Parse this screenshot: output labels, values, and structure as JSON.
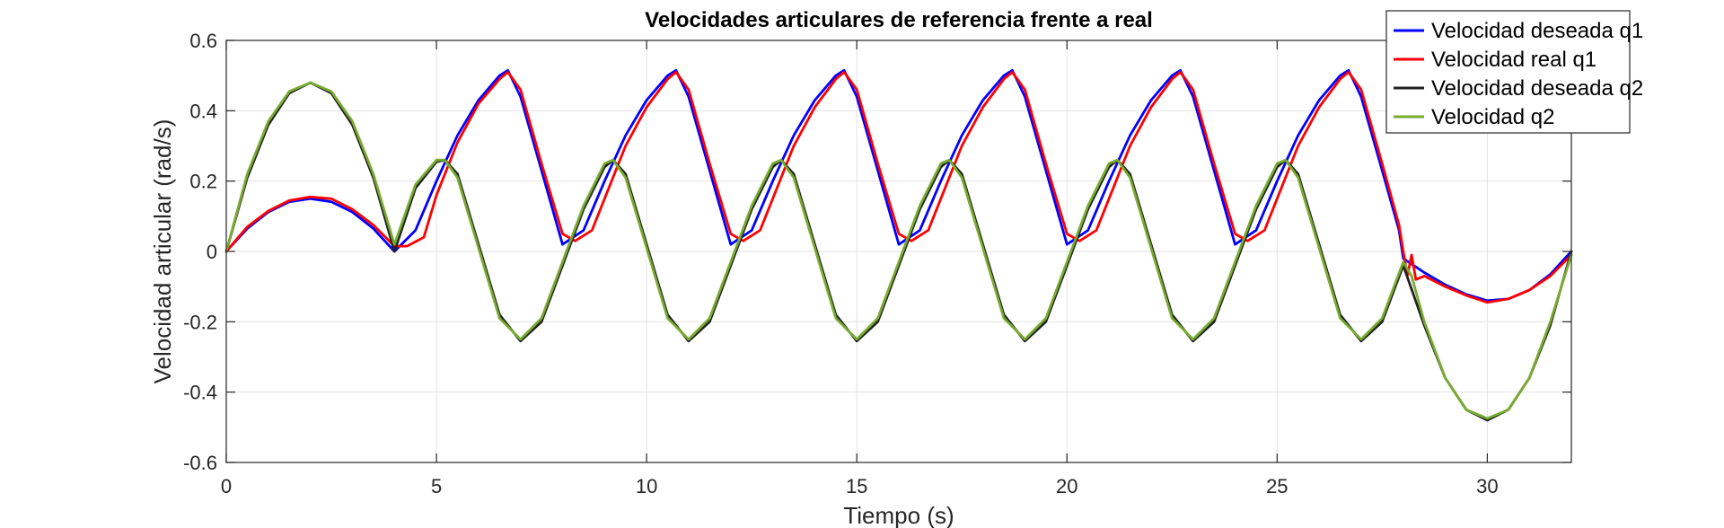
{
  "chart_data": {
    "type": "line",
    "title": "Velocidades articulares de referencia frente a real",
    "xlabel": "Tiempo (s)",
    "ylabel": "Velocidad articular (rad/s)",
    "xlim": [
      0,
      32
    ],
    "ylim": [
      -0.6,
      0.6
    ],
    "xticks": [
      0,
      5,
      10,
      15,
      20,
      25,
      30
    ],
    "yticks": [
      -0.6,
      -0.4,
      -0.2,
      0,
      0.2,
      0.4,
      0.6
    ],
    "xtick_labels": [
      "0",
      "5",
      "10",
      "15",
      "20",
      "25",
      "30"
    ],
    "ytick_labels": [
      "-0.6",
      "-0.4",
      "-0.2",
      "0",
      "0.2",
      "0.4",
      "0.6"
    ],
    "grid": true,
    "legend_position": "top-right",
    "series": [
      {
        "name": "Velocidad deseada q1",
        "color": "#0000FF",
        "x": [
          0,
          0.5,
          1,
          1.5,
          2,
          2.5,
          3,
          3.5,
          4,
          4.5,
          5,
          5.5,
          6,
          6.5,
          6.7,
          7,
          7.5,
          8,
          8.5,
          9,
          9.5,
          10,
          10.5,
          10.7,
          11,
          11.5,
          12,
          12.5,
          13,
          13.5,
          14,
          14.5,
          14.7,
          15,
          15.5,
          16,
          16.5,
          17,
          17.5,
          18,
          18.5,
          18.7,
          19,
          19.5,
          20,
          20.5,
          21,
          21.5,
          22,
          22.5,
          22.7,
          23,
          23.5,
          24,
          24.5,
          25,
          25.5,
          26,
          26.5,
          26.7,
          27,
          27.5,
          27.9,
          28,
          28.5,
          29,
          29.5,
          30,
          30.5,
          31,
          31.5,
          32
        ],
        "y": [
          0,
          0.065,
          0.112,
          0.141,
          0.15,
          0.141,
          0.112,
          0.065,
          0,
          0.06,
          0.2,
          0.33,
          0.43,
          0.5,
          0.515,
          0.44,
          0.23,
          0.02,
          0.06,
          0.2,
          0.33,
          0.43,
          0.5,
          0.515,
          0.44,
          0.23,
          0.02,
          0.06,
          0.2,
          0.33,
          0.43,
          0.5,
          0.515,
          0.44,
          0.23,
          0.02,
          0.06,
          0.2,
          0.33,
          0.43,
          0.5,
          0.515,
          0.44,
          0.23,
          0.02,
          0.06,
          0.2,
          0.33,
          0.43,
          0.5,
          0.515,
          0.44,
          0.23,
          0.02,
          0.06,
          0.2,
          0.33,
          0.43,
          0.5,
          0.515,
          0.44,
          0.23,
          0.06,
          -0.02,
          -0.06,
          -0.095,
          -0.122,
          -0.14,
          -0.135,
          -0.11,
          -0.065,
          0
        ]
      },
      {
        "name": "Velocidad real q1",
        "color": "#FF0000",
        "x": [
          0,
          0.5,
          1,
          1.5,
          2,
          2.5,
          3,
          3.5,
          4,
          4.3,
          4.7,
          5,
          5.5,
          6,
          6.5,
          6.7,
          7,
          7.5,
          8,
          8.3,
          8.7,
          9,
          9.5,
          10,
          10.5,
          10.7,
          11,
          11.5,
          12,
          12.3,
          12.7,
          13,
          13.5,
          14,
          14.5,
          14.7,
          15,
          15.5,
          16,
          16.3,
          16.7,
          17,
          17.5,
          18,
          18.5,
          18.7,
          19,
          19.5,
          20,
          20.3,
          20.7,
          21,
          21.5,
          22,
          22.5,
          22.7,
          23,
          23.5,
          24,
          24.3,
          24.7,
          25,
          25.5,
          26,
          26.5,
          26.7,
          27,
          27.5,
          27.9,
          28,
          28.1,
          28.2,
          28.3,
          28.5,
          29,
          29.5,
          30,
          30.5,
          31,
          31.5,
          32
        ],
        "y": [
          0,
          0.07,
          0.115,
          0.145,
          0.155,
          0.15,
          0.12,
          0.075,
          0.015,
          0.015,
          0.04,
          0.16,
          0.31,
          0.42,
          0.49,
          0.51,
          0.46,
          0.25,
          0.05,
          0.03,
          0.06,
          0.15,
          0.3,
          0.41,
          0.49,
          0.51,
          0.46,
          0.25,
          0.05,
          0.03,
          0.06,
          0.15,
          0.3,
          0.41,
          0.49,
          0.51,
          0.46,
          0.25,
          0.05,
          0.03,
          0.06,
          0.15,
          0.3,
          0.41,
          0.49,
          0.51,
          0.46,
          0.25,
          0.05,
          0.03,
          0.06,
          0.15,
          0.3,
          0.41,
          0.49,
          0.51,
          0.46,
          0.25,
          0.05,
          0.03,
          0.06,
          0.15,
          0.3,
          0.41,
          0.49,
          0.51,
          0.46,
          0.25,
          0.075,
          0.0,
          -0.07,
          -0.01,
          -0.08,
          -0.07,
          -0.1,
          -0.125,
          -0.145,
          -0.135,
          -0.11,
          -0.07,
          -0.01
        ]
      },
      {
        "name": "Velocidad deseada q2",
        "color": "#222222",
        "x": [
          0,
          0.5,
          1,
          1.5,
          2,
          2.5,
          3,
          3.5,
          4,
          4.5,
          5,
          5.2,
          5.5,
          6,
          6.5,
          7,
          7.5,
          8,
          8.5,
          9,
          9.2,
          9.5,
          10,
          10.5,
          11,
          11.5,
          12,
          12.5,
          13,
          13.2,
          13.5,
          14,
          14.5,
          15,
          15.5,
          16,
          16.5,
          17,
          17.2,
          17.5,
          18,
          18.5,
          19,
          19.5,
          20,
          20.5,
          21,
          21.2,
          21.5,
          22,
          22.5,
          23,
          23.5,
          24,
          24.5,
          25,
          25.2,
          25.5,
          26,
          26.5,
          27,
          27.5,
          28,
          28.5,
          29,
          29.5,
          30,
          30.5,
          31,
          31.5,
          32
        ],
        "y": [
          0,
          0.21,
          0.36,
          0.45,
          0.48,
          0.45,
          0.36,
          0.21,
          0,
          0.18,
          0.255,
          0.26,
          0.22,
          0.02,
          -0.18,
          -0.255,
          -0.2,
          -0.04,
          0.12,
          0.24,
          0.26,
          0.22,
          0.02,
          -0.18,
          -0.255,
          -0.2,
          -0.04,
          0.12,
          0.24,
          0.26,
          0.22,
          0.02,
          -0.18,
          -0.255,
          -0.2,
          -0.04,
          0.12,
          0.24,
          0.26,
          0.22,
          0.02,
          -0.18,
          -0.255,
          -0.2,
          -0.04,
          0.12,
          0.24,
          0.26,
          0.22,
          0.02,
          -0.18,
          -0.255,
          -0.2,
          -0.04,
          0.12,
          0.24,
          0.26,
          0.22,
          0.02,
          -0.18,
          -0.255,
          -0.2,
          -0.04,
          -0.21,
          -0.36,
          -0.45,
          -0.48,
          -0.45,
          -0.36,
          -0.21,
          0
        ]
      },
      {
        "name": "Velocidad q2",
        "color": "#77AC30",
        "x": [
          0,
          0.5,
          1,
          1.5,
          2,
          2.5,
          3,
          3.5,
          4,
          4.5,
          5,
          5.2,
          5.5,
          6,
          6.5,
          7,
          7.5,
          8,
          8.5,
          9,
          9.2,
          9.5,
          10,
          10.5,
          11,
          11.5,
          12,
          12.5,
          13,
          13.2,
          13.5,
          14,
          14.5,
          15,
          15.5,
          16,
          16.5,
          17,
          17.2,
          17.5,
          18,
          18.5,
          19,
          19.5,
          20,
          20.5,
          21,
          21.2,
          21.5,
          22,
          22.5,
          23,
          23.5,
          24,
          24.5,
          25,
          25.2,
          25.5,
          26,
          26.5,
          27,
          27.5,
          28,
          28.2,
          28.5,
          29,
          29.5,
          30,
          30.5,
          31,
          31.5,
          32
        ],
        "y": [
          0,
          0.22,
          0.37,
          0.455,
          0.48,
          0.455,
          0.37,
          0.22,
          0.02,
          0.19,
          0.26,
          0.26,
          0.21,
          0.01,
          -0.19,
          -0.25,
          -0.19,
          -0.03,
          0.13,
          0.25,
          0.26,
          0.21,
          0.01,
          -0.19,
          -0.25,
          -0.19,
          -0.03,
          0.13,
          0.25,
          0.26,
          0.21,
          0.01,
          -0.19,
          -0.25,
          -0.19,
          -0.03,
          0.13,
          0.25,
          0.26,
          0.21,
          0.01,
          -0.19,
          -0.25,
          -0.19,
          -0.03,
          0.13,
          0.25,
          0.26,
          0.21,
          0.01,
          -0.19,
          -0.25,
          -0.19,
          -0.03,
          0.13,
          0.25,
          0.26,
          0.21,
          0.01,
          -0.19,
          -0.25,
          -0.19,
          -0.03,
          -0.07,
          -0.2,
          -0.36,
          -0.45,
          -0.475,
          -0.45,
          -0.36,
          -0.2,
          -0.01
        ]
      }
    ]
  }
}
